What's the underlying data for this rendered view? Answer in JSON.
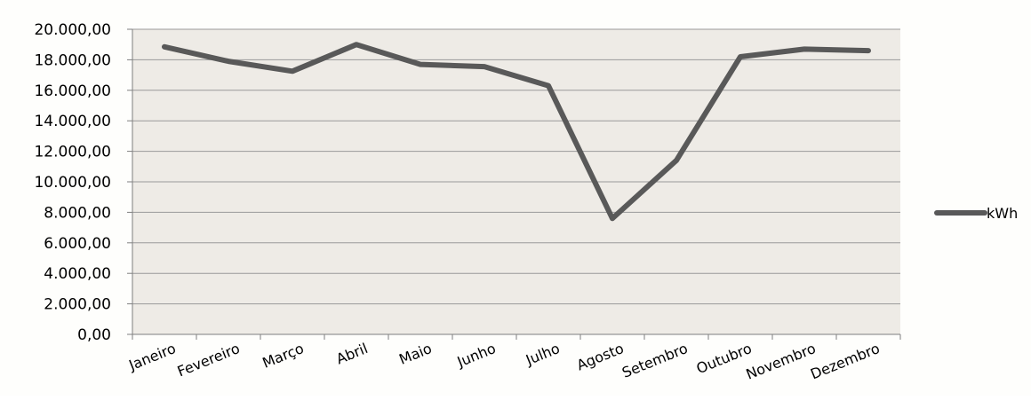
{
  "chart_data": {
    "type": "line",
    "categories": [
      "Janeiro",
      "Fevereiro",
      "Março",
      "Abril",
      "Maio",
      "Junho",
      "Julho",
      "Agosto",
      "Setembro",
      "Outubro",
      "Novembro",
      "Dezembro"
    ],
    "series": [
      {
        "name": "kWh",
        "values": [
          18850,
          17900,
          17250,
          19000,
          17700,
          17550,
          16300,
          7600,
          11400,
          18200,
          18700,
          18600
        ]
      }
    ],
    "yticks": [
      "0,00",
      "2.000,00",
      "4.000,00",
      "6.000,00",
      "8.000,00",
      "10.000,00",
      "12.000,00",
      "14.000,00",
      "16.000,00",
      "18.000,00",
      "20.000,00"
    ],
    "ylim": [
      0,
      20000
    ],
    "title": "",
    "xlabel": "",
    "ylabel": "",
    "grid": true,
    "legend_position": "right",
    "colors": {
      "line": "#595959",
      "plot_background": "#eeebe6",
      "gridline": "#9a9a9a",
      "axis": "#7f7f7f",
      "text": "#000000"
    }
  }
}
